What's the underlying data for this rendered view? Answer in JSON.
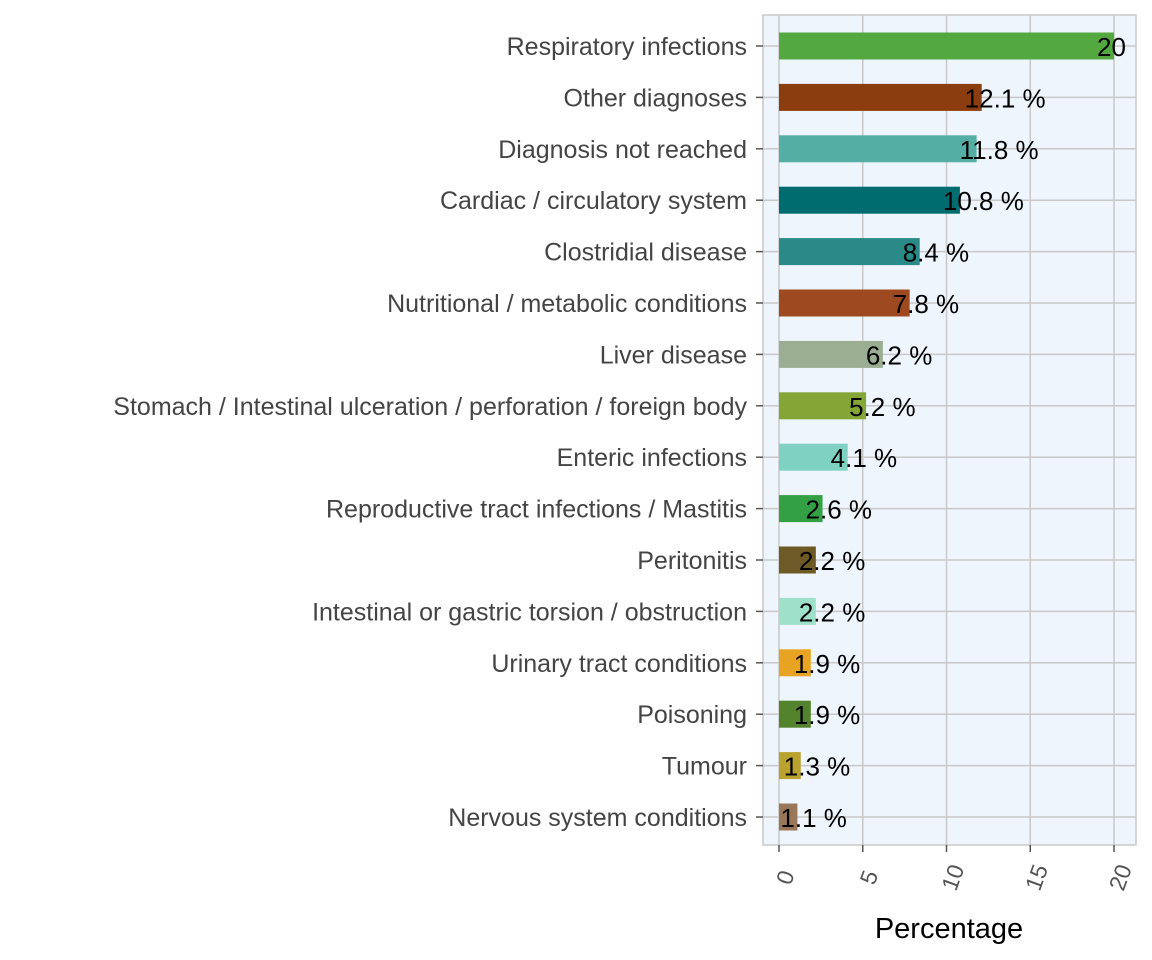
{
  "chart_data": {
    "type": "bar",
    "orientation": "horizontal",
    "title": "",
    "xlabel": "Percentage",
    "ylabel": "",
    "xlim": [
      0,
      20.6
    ],
    "x_ticks": [
      0,
      5,
      10,
      15,
      20
    ],
    "x_tick_labels": [
      "0",
      "5",
      "10",
      "15",
      "20"
    ],
    "grid": true,
    "legend": "none",
    "panel_background": "#eef5fd",
    "grid_color": "#c8c8c8",
    "categories": [
      "Respiratory infections",
      "Other diagnoses",
      "Diagnosis not reached",
      "Cardiac / circulatory system",
      "Clostridial disease",
      "Nutritional / metabolic conditions",
      "Liver disease",
      "Stomach / Intestinal ulceration / perforation / foreign body",
      "Enteric infections",
      "Reproductive tract infections / Mastitis",
      "Peritonitis",
      "Intestinal or gastric torsion / obstruction",
      "Urinary tract conditions",
      "Poisoning",
      "Tumour",
      "Nervous system conditions"
    ],
    "values": [
      20,
      12.1,
      11.8,
      10.8,
      8.4,
      7.8,
      6.2,
      5.2,
      4.1,
      2.6,
      2.2,
      2.2,
      1.9,
      1.9,
      1.3,
      1.1
    ],
    "data_labels": [
      "20",
      "12.1 %",
      "11.8 %",
      "10.8 %",
      "8.4 %",
      "7.8 %",
      "6.2 %",
      "5.2 %",
      "4.1 %",
      "2.6 %",
      "2.2 %",
      "2.2 %",
      "1.9 %",
      "1.9 %",
      "1.3 %",
      "1.1 %"
    ],
    "colors": [
      "#53a93f",
      "#8b3d10",
      "#55aea3",
      "#006c70",
      "#2a8a87",
      "#9e4920",
      "#9bae91",
      "#84a636",
      "#7fd1c2",
      "#33a044",
      "#6e5a26",
      "#9fe0ca",
      "#e8a323",
      "#53832d",
      "#b9a22e",
      "#9b7759"
    ]
  }
}
